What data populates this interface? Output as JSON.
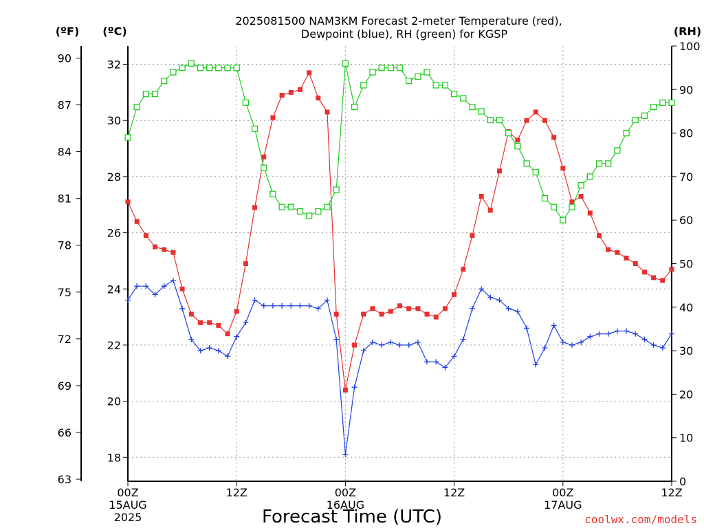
{
  "chart_data": {
    "type": "line",
    "title_line1": "2025081500 NAM3KM Forecast 2-meter Temperature (red),",
    "title_line2": "Dewpoint (blue), RH (green) for KGSP",
    "xlabel": "Forecast Time (UTC)",
    "credit": "coolwx.com/models",
    "unit_labels": {
      "left_f": "(ºF)",
      "left_c": "(ºC)",
      "right_rh": "(RH)"
    },
    "x_ticks": [
      {
        "h": 0,
        "label": "00Z",
        "sub1": "15AUG",
        "sub2": "2025"
      },
      {
        "h": 12,
        "label": "12Z",
        "sub1": "",
        "sub2": ""
      },
      {
        "h": 24,
        "label": "00Z",
        "sub1": "16AUG",
        "sub2": ""
      },
      {
        "h": 36,
        "label": "12Z",
        "sub1": "",
        "sub2": ""
      },
      {
        "h": 48,
        "label": "00Z",
        "sub1": "17AUG",
        "sub2": ""
      },
      {
        "h": 60,
        "label": "12Z",
        "sub1": "",
        "sub2": ""
      }
    ],
    "xlim": [
      0,
      60
    ],
    "y_celsius": {
      "lim": [
        17.15,
        32.65
      ],
      "ticks": [
        18,
        20,
        22,
        24,
        26,
        28,
        30,
        32
      ]
    },
    "y_fahrenheit": {
      "ticks": [
        63,
        66,
        69,
        72,
        75,
        78,
        81,
        84,
        87,
        90
      ]
    },
    "y_rh": {
      "lim": [
        0,
        100
      ],
      "ticks": [
        0,
        10,
        20,
        30,
        40,
        50,
        60,
        70,
        80,
        90,
        100
      ]
    },
    "hours": [
      0,
      1,
      2,
      3,
      4,
      5,
      6,
      7,
      8,
      9,
      10,
      11,
      12,
      13,
      14,
      15,
      16,
      17,
      18,
      19,
      20,
      21,
      22,
      23,
      24,
      25,
      26,
      27,
      28,
      29,
      30,
      31,
      32,
      33,
      34,
      35,
      36,
      37,
      38,
      39,
      40,
      41,
      42,
      43,
      44,
      45,
      46,
      47,
      48,
      49,
      50,
      51,
      52,
      53,
      54,
      55,
      56,
      57,
      58,
      59,
      60
    ],
    "series": [
      {
        "name": "Temperature",
        "color": "#e83030",
        "marker": "filled-square",
        "axis": "celsius",
        "values": [
          27.1,
          26.4,
          25.9,
          25.5,
          25.4,
          25.3,
          24.0,
          23.1,
          22.8,
          22.8,
          22.7,
          22.4,
          23.2,
          24.9,
          26.9,
          28.7,
          30.1,
          30.9,
          31.0,
          31.1,
          31.7,
          30.8,
          30.3,
          23.1,
          20.4,
          22.0,
          23.1,
          23.3,
          23.1,
          23.2,
          23.4,
          23.3,
          23.3,
          23.1,
          23.0,
          23.3,
          23.8,
          24.7,
          25.9,
          27.3,
          26.8,
          28.2,
          29.6,
          29.3,
          30.0,
          30.3,
          30.0,
          29.4,
          28.3,
          27.1,
          27.3,
          26.7,
          25.9,
          25.4,
          25.3,
          25.1,
          24.9,
          24.6,
          24.4,
          24.3,
          24.7
        ]
      },
      {
        "name": "Dewpoint",
        "color": "#2040e0",
        "marker": "plus",
        "axis": "celsius",
        "values": [
          23.6,
          24.1,
          24.1,
          23.8,
          24.1,
          24.3,
          23.3,
          22.2,
          21.8,
          21.9,
          21.8,
          21.6,
          22.3,
          22.8,
          23.6,
          23.4,
          23.4,
          23.4,
          23.4,
          23.4,
          23.4,
          23.3,
          23.6,
          22.2,
          18.1,
          20.5,
          21.8,
          22.1,
          22.0,
          22.1,
          22.0,
          22.0,
          22.1,
          21.4,
          21.4,
          21.2,
          21.6,
          22.2,
          23.3,
          24.0,
          23.7,
          23.6,
          23.3,
          23.2,
          22.6,
          21.3,
          21.9,
          22.7,
          22.1,
          22.0,
          22.1,
          22.3,
          22.4,
          22.4,
          22.5,
          22.5,
          22.4,
          22.2,
          22.0,
          21.9,
          22.4
        ]
      },
      {
        "name": "RH",
        "color": "#22cc22",
        "marker": "open-square",
        "axis": "rh",
        "values": [
          79,
          86,
          89,
          89,
          92,
          94,
          95,
          96,
          95,
          95,
          95,
          95,
          95,
          87,
          81,
          72,
          66,
          63,
          63,
          62,
          61,
          62,
          63,
          67,
          96,
          86,
          91,
          94,
          95,
          95,
          95,
          92,
          93,
          94,
          91,
          91,
          89,
          88,
          86,
          85,
          83,
          83,
          80,
          77,
          73,
          71,
          65,
          63,
          60,
          63,
          68,
          70,
          73,
          73,
          76,
          80,
          83,
          84,
          86,
          87,
          87
        ]
      }
    ]
  }
}
